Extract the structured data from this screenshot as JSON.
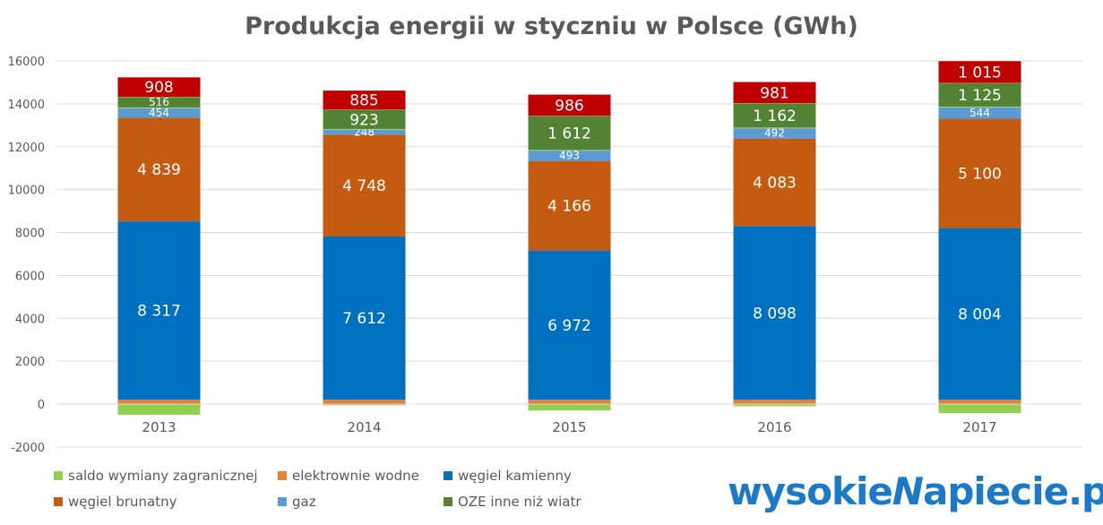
{
  "chart_data": {
    "type": "bar",
    "stacked": true,
    "title": "Produkcja energii w styczniu w Polsce (GWh)",
    "categories": [
      "2013",
      "2014",
      "2015",
      "2016",
      "2017"
    ],
    "ylim": [
      -2000,
      16000
    ],
    "yticks": [
      "16000",
      "14000",
      "12000",
      "10000",
      "8000",
      "6000",
      "4000",
      "2000",
      "0",
      "-2000"
    ],
    "grid": true,
    "legend_position": "bottom-left",
    "series": [
      {
        "name": "saldo wymiany zagranicznej",
        "color": "#92d050",
        "values": [
          -500,
          -60,
          -300,
          -100,
          -420
        ],
        "labels": null
      },
      {
        "name": "elektrownie wodne",
        "color": "#ed7d31",
        "values": [
          200,
          200,
          200,
          200,
          200
        ],
        "labels": null
      },
      {
        "name": "węgiel kamienny",
        "color": "#0070c0",
        "values": [
          8317,
          7612,
          6972,
          8098,
          8004
        ],
        "labels": [
          "8 317",
          "7 612",
          "6 972",
          "8 098",
          "8 004"
        ]
      },
      {
        "name": "węgiel brunatny",
        "color": "#c55a11",
        "values": [
          4839,
          4748,
          4166,
          4083,
          5100
        ],
        "labels": [
          "4 839",
          "4 748",
          "4 166",
          "4 083",
          "5 100"
        ]
      },
      {
        "name": "gaz",
        "color": "#5b9bd5",
        "values": [
          454,
          248,
          493,
          492,
          544
        ],
        "labels": [
          "454",
          "248",
          "493",
          "492",
          "544"
        ]
      },
      {
        "name": "OZE inne niż wiatr",
        "color": "#548235",
        "values": [
          516,
          923,
          1612,
          1162,
          1125
        ],
        "labels": [
          "516",
          "923",
          "1 612",
          "1 162",
          "1 125"
        ]
      },
      {
        "color": "#c00000",
        "values": [
          908,
          885,
          986,
          981,
          1015
        ],
        "labels": [
          "908",
          "885",
          "986",
          "981",
          "1 015"
        ]
      }
    ]
  },
  "logo": {
    "text": "wysokieNapiecie.pl"
  }
}
